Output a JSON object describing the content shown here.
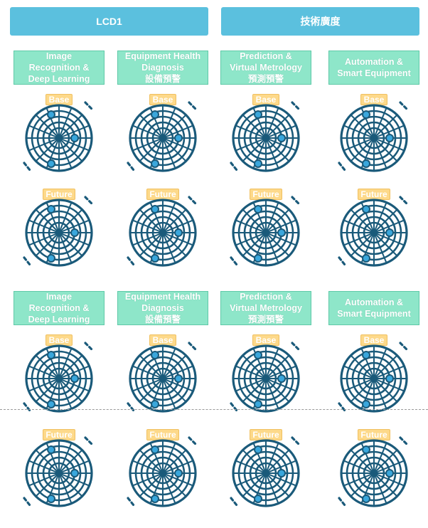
{
  "headers": [
    "LCD1",
    "技術廣度"
  ],
  "categories": [
    [
      "Image",
      "Recognition  &",
      "Deep Learning"
    ],
    [
      "Equipment Health",
      "Diagnosis",
      "設備預警"
    ],
    [
      "Prediction &",
      "Virtual Metrology",
      "預測預警"
    ],
    [
      "Automation &",
      "Smart Equipment"
    ]
  ],
  "badges": {
    "base": "Base",
    "future": "Future"
  },
  "icon": "radar-icon",
  "colors": {
    "header": "#5bc0de",
    "category": "#8ee6c9",
    "badge": "#fdd98a",
    "icon_stroke": "#1a5a7a",
    "icon_dot": "#3aa7dc"
  }
}
